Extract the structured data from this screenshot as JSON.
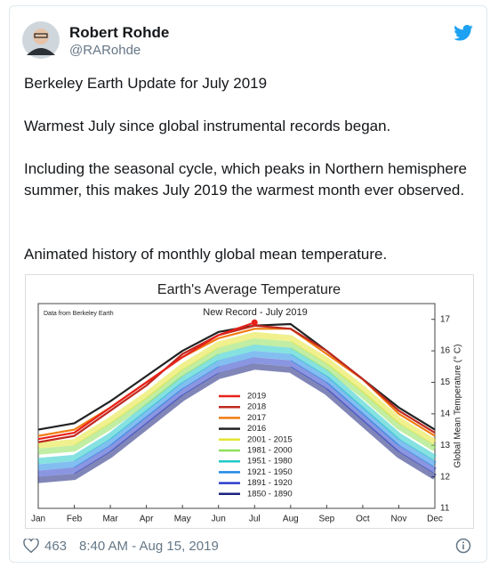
{
  "author": {
    "name": "Robert Rohde",
    "handle": "@RARohde"
  },
  "body": [
    "Berkeley Earth Update for July 2019",
    "Warmest July since global instrumental records began.",
    "Including the seasonal cycle, which peaks in Northern hemisphere summer, this makes July 2019 the warmest month ever observed.",
    "Animated history of monthly global mean temperature."
  ],
  "footer": {
    "likes": "463",
    "timestamp": "8:40 AM - Aug 15, 2019"
  },
  "chart_data": {
    "type": "line",
    "title": "Earth's Average Temperature",
    "source": "Data from Berkeley Earth",
    "annotation": "New Record - July 2019",
    "y_label": "Global Mean Temperature (° C)",
    "categories": [
      "Jan",
      "Feb",
      "Mar",
      "Apr",
      "May",
      "Jun",
      "Jul",
      "Aug",
      "Sep",
      "Oct",
      "Nov",
      "Dec"
    ],
    "ylim": [
      11,
      17.5
    ],
    "yticks": [
      11,
      12,
      13,
      14,
      15,
      16,
      17
    ],
    "y_axis_side": "right",
    "legend": "center",
    "series": [
      {
        "name": "2019",
        "color": "#e8221b",
        "values": [
          13.2,
          13.4,
          14.2,
          15.0,
          15.8,
          16.5,
          16.9,
          null,
          null,
          null,
          null,
          null
        ]
      },
      {
        "name": "2018",
        "color": "#c0281e",
        "values": [
          13.1,
          13.3,
          14.1,
          14.9,
          15.9,
          16.5,
          16.8,
          16.7,
          16.0,
          15.1,
          14.1,
          13.4
        ]
      },
      {
        "name": "2017",
        "color": "#f07c12",
        "values": [
          13.3,
          13.5,
          14.2,
          15.0,
          15.8,
          16.4,
          16.7,
          16.7,
          15.9,
          15.1,
          14.0,
          13.3
        ]
      },
      {
        "name": "2016",
        "color": "#222222",
        "values": [
          13.5,
          13.7,
          14.4,
          15.2,
          16.0,
          16.6,
          16.8,
          16.85,
          16.0,
          15.1,
          14.2,
          13.5
        ]
      },
      {
        "name": "2001 - 2015",
        "color": "#e3e332",
        "values": [
          13.0,
          13.1,
          13.8,
          14.6,
          15.5,
          16.2,
          16.5,
          16.4,
          15.7,
          14.8,
          13.8,
          13.1
        ]
      },
      {
        "name": "1981 - 2000",
        "color": "#8ee05a",
        "values": [
          12.8,
          12.9,
          13.6,
          14.4,
          15.3,
          16.0,
          16.3,
          16.2,
          15.5,
          14.6,
          13.6,
          12.9
        ]
      },
      {
        "name": "1951 - 1980",
        "color": "#22c8c8",
        "values": [
          12.5,
          12.6,
          13.3,
          14.2,
          15.1,
          15.8,
          16.1,
          16.0,
          15.3,
          14.3,
          13.3,
          12.6
        ]
      },
      {
        "name": "1921 - 1950",
        "color": "#1e88e5",
        "values": [
          12.3,
          12.4,
          13.1,
          14.0,
          14.9,
          15.6,
          15.9,
          15.8,
          15.1,
          14.1,
          13.1,
          12.4
        ]
      },
      {
        "name": "1891 - 1920",
        "color": "#2a3fc9",
        "values": [
          12.1,
          12.2,
          12.9,
          13.8,
          14.7,
          15.4,
          15.7,
          15.6,
          14.9,
          13.9,
          12.9,
          12.2
        ]
      },
      {
        "name": "1850 - 1890",
        "color": "#1a237e",
        "values": [
          11.9,
          12.0,
          12.7,
          13.6,
          14.5,
          15.2,
          15.5,
          15.4,
          14.7,
          13.7,
          12.7,
          12.0
        ]
      }
    ]
  }
}
